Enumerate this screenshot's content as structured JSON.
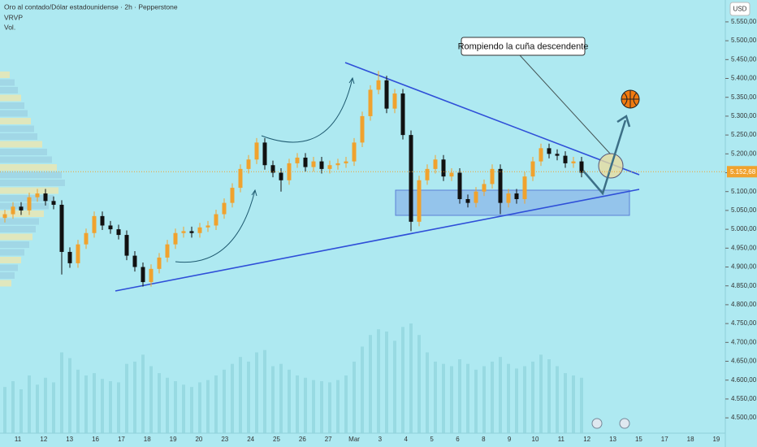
{
  "chart_data": {
    "type": "candlestick",
    "title": "Oro al contado/Dólar estadounidense · 2h · Pepperstone",
    "indicators": [
      "VRVP",
      "Vol."
    ],
    "currency": "USD",
    "annotation": "Rompiendo la cuña descendente",
    "up_color": "#f0a22e",
    "down_color": "#111111",
    "x_labels": [
      "11",
      "12",
      "13",
      "16",
      "17",
      "18",
      "19",
      "20",
      "23",
      "24",
      "25",
      "26",
      "27",
      "Mar",
      "3",
      "4",
      "5",
      "6",
      "8",
      "9",
      "10",
      "11",
      "12",
      "13",
      "15",
      "17",
      "18",
      "19"
    ],
    "open": [
      5030,
      5040,
      5060,
      5050,
      5085,
      5095,
      5075,
      5065,
      4940,
      4910,
      4960,
      4990,
      5035,
      5010,
      5000,
      4985,
      4930,
      4900,
      4860,
      4895,
      4925,
      4960,
      4990,
      4995,
      4990,
      5005,
      5010,
      5040,
      5070,
      5110,
      5160,
      5185,
      5230,
      5170,
      5150,
      5130,
      5175,
      5190,
      5165,
      5180,
      5160,
      5170,
      5175,
      5180,
      5230,
      5300,
      5370,
      5395,
      5320,
      5360,
      5250,
      5020,
      5130,
      5160,
      5185,
      5140,
      5150,
      5080,
      5070,
      5100,
      5120,
      5160,
      5070,
      5095,
      5080,
      5140,
      5180,
      5215,
      5200,
      5195,
      5175,
      5180
    ],
    "high": [
      5052,
      5072,
      5072,
      5097,
      5107,
      5107,
      5087,
      5077,
      4952,
      4972,
      5002,
      5047,
      5047,
      5022,
      5012,
      4997,
      4942,
      4912,
      4907,
      4937,
      4972,
      5002,
      5007,
      5007,
      5017,
      5022,
      5052,
      5082,
      5122,
      5172,
      5197,
      5242,
      5242,
      5182,
      5162,
      5187,
      5202,
      5202,
      5192,
      5192,
      5182,
      5187,
      5192,
      5242,
      5312,
      5382,
      5420,
      5407,
      5372,
      5372,
      5262,
      5142,
      5172,
      5197,
      5197,
      5162,
      5162,
      5092,
      5112,
      5132,
      5172,
      5172,
      5107,
      5107,
      5152,
      5192,
      5227,
      5227,
      5212,
      5207,
      5192,
      5192
    ],
    "low": [
      5018,
      5028,
      5038,
      5038,
      5073,
      5063,
      5053,
      4880,
      4898,
      4898,
      4948,
      4978,
      4998,
      4988,
      4973,
      4918,
      4888,
      4848,
      4848,
      4883,
      4913,
      4948,
      4978,
      4978,
      4978,
      4993,
      4998,
      5028,
      5058,
      5098,
      5148,
      5173,
      5158,
      5138,
      5100,
      5118,
      5163,
      5153,
      5153,
      5148,
      5148,
      5158,
      5163,
      5168,
      5218,
      5288,
      5358,
      5308,
      5308,
      5238,
      4995,
      5008,
      5118,
      5148,
      5128,
      5128,
      5068,
      5058,
      5058,
      5088,
      5108,
      5040,
      5058,
      5068,
      5068,
      5128,
      5168,
      5188,
      5183,
      5163,
      5163,
      5138
    ],
    "close": [
      5040,
      5060,
      5050,
      5085,
      5095,
      5075,
      5065,
      4940,
      4910,
      4960,
      4990,
      5035,
      5010,
      5000,
      4985,
      4930,
      4900,
      4860,
      4895,
      4925,
      4960,
      4990,
      4995,
      4990,
      5005,
      5010,
      5040,
      5070,
      5110,
      5160,
      5185,
      5230,
      5170,
      5150,
      5130,
      5175,
      5190,
      5165,
      5180,
      5160,
      5170,
      5175,
      5180,
      5230,
      5300,
      5370,
      5395,
      5320,
      5360,
      5250,
      5020,
      5130,
      5160,
      5185,
      5140,
      5150,
      5080,
      5070,
      5100,
      5120,
      5160,
      5070,
      5095,
      5080,
      5140,
      5180,
      5215,
      5200,
      5195,
      5175,
      5180,
      5150
    ],
    "volume": [
      40,
      45,
      38,
      50,
      42,
      48,
      44,
      70,
      65,
      55,
      50,
      52,
      47,
      45,
      44,
      60,
      62,
      68,
      58,
      52,
      48,
      45,
      42,
      40,
      44,
      46,
      50,
      55,
      60,
      66,
      62,
      70,
      72,
      58,
      60,
      55,
      50,
      48,
      46,
      45,
      44,
      46,
      50,
      62,
      75,
      85,
      90,
      88,
      80,
      92,
      95,
      85,
      70,
      62,
      60,
      58,
      64,
      60,
      55,
      58,
      62,
      66,
      60,
      56,
      58,
      62,
      68,
      64,
      58,
      52,
      50,
      48
    ],
    "volume_profile": [
      12,
      18,
      22,
      26,
      30,
      34,
      38,
      42,
      46,
      52,
      58,
      64,
      70,
      76,
      80,
      72,
      66,
      60,
      54,
      48,
      44,
      40,
      36,
      30,
      26,
      22,
      18,
      14
    ],
    "last_price": {
      "value": 5152.68,
      "label": "5.152,68"
    },
    "ylim": [
      4455,
      5608
    ],
    "yticks": [
      {
        "value": 4500,
        "label": "4.500,00"
      },
      {
        "value": 4550,
        "label": "4.550,00"
      },
      {
        "value": 4600,
        "label": "4.600,00"
      },
      {
        "value": 4650,
        "label": "4.650,00"
      },
      {
        "value": 4700,
        "label": "4.700,00"
      },
      {
        "value": 4750,
        "label": "4.750,00"
      },
      {
        "value": 4800,
        "label": "4.800,00"
      },
      {
        "value": 4850,
        "label": "4.850,00"
      },
      {
        "value": 4900,
        "label": "4.900,00"
      },
      {
        "value": 4950,
        "label": "4.950,00"
      },
      {
        "value": 5000,
        "label": "5.000,00"
      },
      {
        "value": 5050,
        "label": "5.050,00"
      },
      {
        "value": 5100,
        "label": "5.100,00"
      },
      {
        "value": 5150,
        "label": "5.150,00"
      },
      {
        "value": 5200,
        "label": "5.200,00"
      },
      {
        "value": 5250,
        "label": "5.250,00"
      },
      {
        "value": 5300,
        "label": "5.300,00"
      },
      {
        "value": 5350,
        "label": "5.350,00"
      },
      {
        "value": 5400,
        "label": "5.400,00"
      },
      {
        "value": 5450,
        "label": "5.450,00"
      },
      {
        "value": 5500,
        "label": "5.500,00"
      },
      {
        "value": 5550,
        "label": "5.550,00"
      }
    ]
  }
}
